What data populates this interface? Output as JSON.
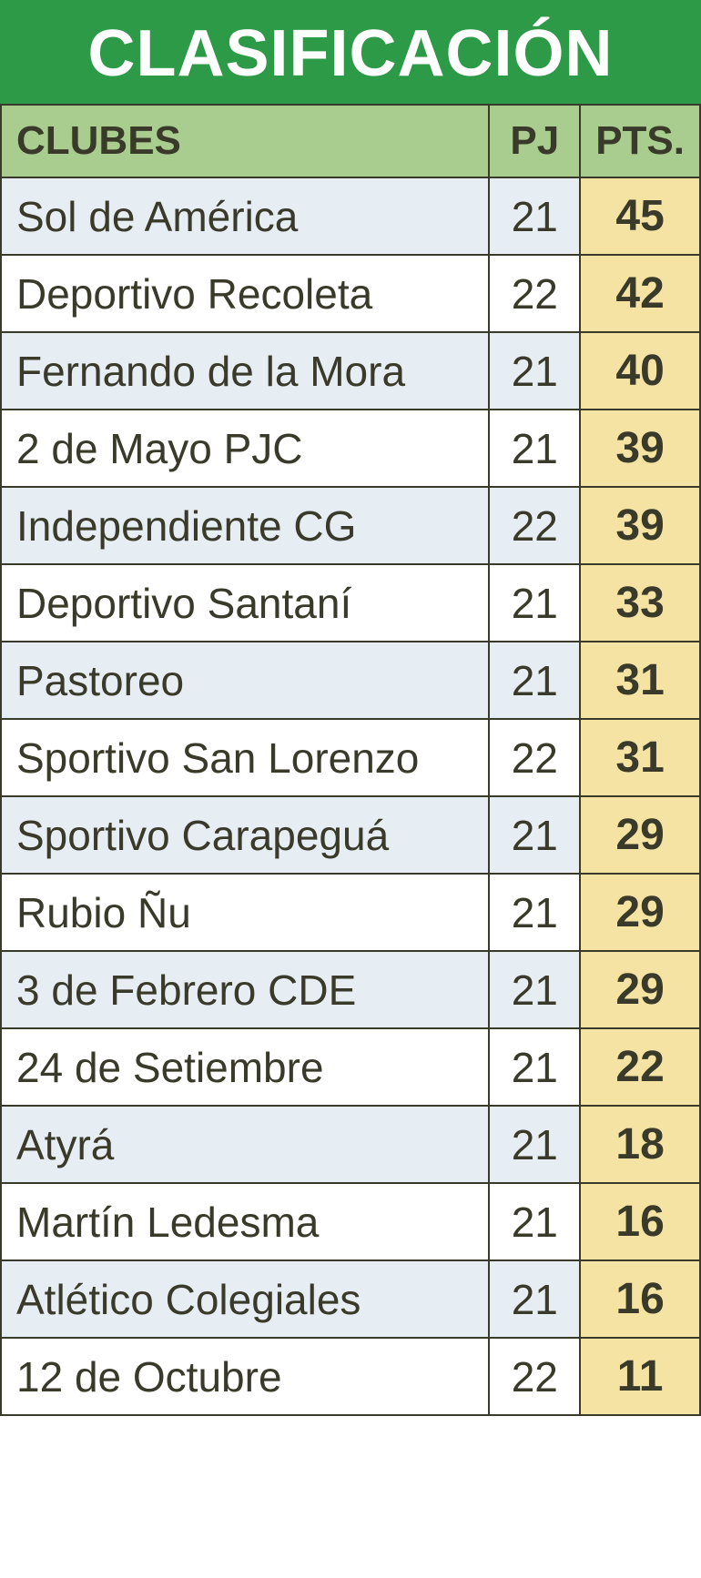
{
  "title": "CLASIFICACIÓN",
  "columns": {
    "club": "CLUBES",
    "pj": "PJ",
    "pts": "PTS."
  },
  "rows": [
    {
      "club": "Sol de América",
      "pj": 21,
      "pts": 45
    },
    {
      "club": "Deportivo Recoleta",
      "pj": 22,
      "pts": 42
    },
    {
      "club": "Fernando de la Mora",
      "pj": 21,
      "pts": 40
    },
    {
      "club": "2 de Mayo PJC",
      "pj": 21,
      "pts": 39
    },
    {
      "club": "Independiente CG",
      "pj": 22,
      "pts": 39
    },
    {
      "club": "Deportivo Santaní",
      "pj": 21,
      "pts": 33
    },
    {
      "club": "Pastoreo",
      "pj": 21,
      "pts": 31
    },
    {
      "club": "Sportivo San Lorenzo",
      "pj": 22,
      "pts": 31
    },
    {
      "club": "Sportivo Carapeguá",
      "pj": 21,
      "pts": 29
    },
    {
      "club": "Rubio Ñu",
      "pj": 21,
      "pts": 29
    },
    {
      "club": "3 de Febrero CDE",
      "pj": 21,
      "pts": 29
    },
    {
      "club": "24 de Setiembre",
      "pj": 21,
      "pts": 22
    },
    {
      "club": "Atyrá",
      "pj": 21,
      "pts": 18
    },
    {
      "club": "Martín Ledesma",
      "pj": 21,
      "pts": 16
    },
    {
      "club": "Atlético Colegiales",
      "pj": 21,
      "pts": 16
    },
    {
      "club": "12 de Octubre",
      "pj": 22,
      "pts": 11
    }
  ],
  "style": {
    "title_bg": "#2d9a47",
    "title_color": "#ffffff",
    "title_fontsize": 72,
    "header_bg": "#a8cd8f",
    "header_color": "#3a3a2a",
    "header_fontsize": 44,
    "border_color": "#3a3a2a",
    "row_odd_bg": "#e6edf3",
    "row_even_bg": "#ffffff",
    "pts_bg": "#f5e3a3",
    "text_color": "#3a3a2a",
    "cell_fontsize": 46,
    "pts_fontsize": 48
  }
}
